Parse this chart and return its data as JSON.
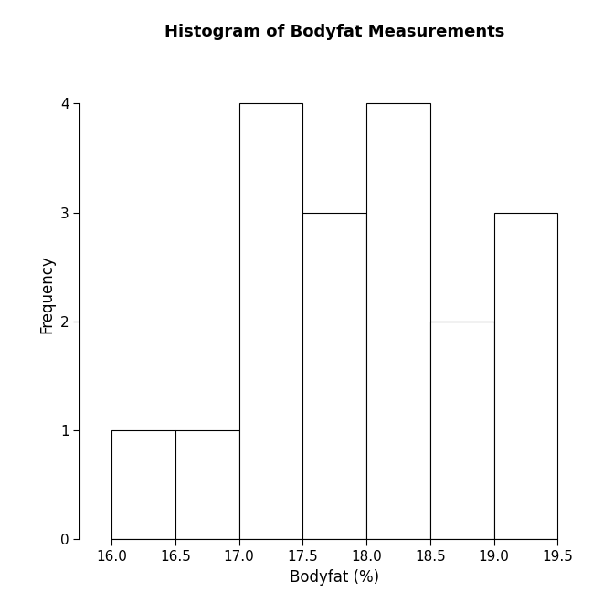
{
  "title": "Histogram of Bodyfat Measurements",
  "xlabel": "Bodyfat (%)",
  "ylabel": "Frequency",
  "bin_edges": [
    16.0,
    16.5,
    17.0,
    17.5,
    18.0,
    18.5,
    19.0,
    19.5
  ],
  "frequencies": [
    1,
    1,
    4,
    3,
    4,
    2,
    3
  ],
  "xlim": [
    15.75,
    19.75
  ],
  "ylim": [
    0,
    4.5
  ],
  "yticks": [
    0,
    1,
    2,
    3,
    4
  ],
  "xticks": [
    16.0,
    16.5,
    17.0,
    17.5,
    18.0,
    18.5,
    19.0,
    19.5
  ],
  "bar_color": "#ffffff",
  "bar_edgecolor": "#000000",
  "background_color": "#ffffff",
  "title_fontsize": 13,
  "label_fontsize": 12,
  "tick_fontsize": 11
}
